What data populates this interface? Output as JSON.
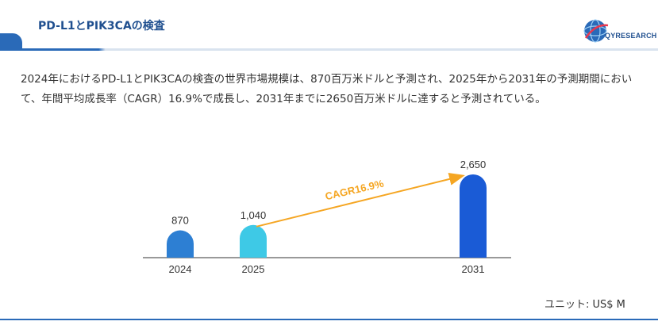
{
  "header": {
    "title": "PD-L1とPIK3CAの検査",
    "logo_text": "QYRESEARCH"
  },
  "description": "2024年におけるPD-L1とPIK3CAの検査の世界市場規模は、870百万米ドルと予測され、2025年から2031年の予測期間において、年間平均成長率（CAGR）16.9%で成長し、2031年までに2650百万米ドルに達すると予測されている。",
  "unit": "ユニット: US$ M",
  "colors": {
    "brand": "#2a6ab8",
    "bar_2024": "#2d7fd3",
    "bar_2025": "#3ec9e6",
    "bar_2031": "#1a5bd6",
    "arrow": "#f5a623"
  },
  "chart_data": {
    "type": "bar",
    "categories": [
      "2024",
      "2025",
      "2031"
    ],
    "values": [
      870,
      1040,
      2650
    ],
    "value_labels": [
      "870",
      "1,040",
      "2,650"
    ],
    "annotation": "CAGR16.9%",
    "ylim": [
      0,
      2650
    ]
  }
}
